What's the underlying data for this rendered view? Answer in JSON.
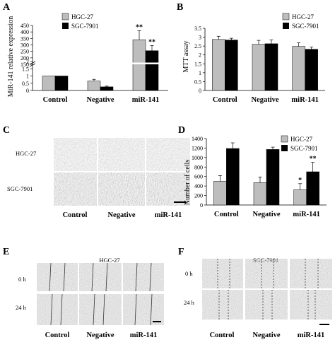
{
  "panels": {
    "A": "A",
    "B": "B",
    "C": "C",
    "D": "D",
    "E": "E",
    "F": "F"
  },
  "colors": {
    "hgc": "#bdbdbd",
    "sgc": "#000000"
  },
  "legend": {
    "hgc": "HGC-27",
    "sgc": "SGC-7901"
  },
  "categories": [
    "Control",
    "Negative",
    "miR-141"
  ],
  "chart_data": [
    {
      "panel": "A",
      "type": "bar",
      "ylabel": "MiR-141 relative expression",
      "categories": [
        "Control",
        "Negative",
        "miR-141"
      ],
      "series": [
        {
          "name": "HGC-27",
          "values": [
            1,
            0.65,
            340
          ],
          "errors": [
            0,
            0.12,
            70
          ]
        },
        {
          "name": "SGC-7901",
          "values": [
            1,
            0.25,
            255
          ],
          "errors": [
            0,
            0.05,
            40
          ]
        }
      ],
      "axis_break": true,
      "yticks_lower": [
        "0",
        "0.5",
        "1",
        "1.5",
        "2"
      ],
      "yticks_upper": [
        "150",
        "200",
        "250",
        "300",
        "350",
        "400",
        "450"
      ],
      "annotations": [
        {
          "category": "miR-141",
          "series": "HGC-27",
          "text": "**"
        },
        {
          "category": "miR-141",
          "series": "SGC-7901",
          "text": "**"
        }
      ]
    },
    {
      "panel": "B",
      "type": "bar",
      "ylabel": "MTT assay",
      "categories": [
        "Control",
        "Negative",
        "miR-141"
      ],
      "series": [
        {
          "name": "HGC-27",
          "values": [
            2.87,
            2.6,
            2.48
          ],
          "errors": [
            0.18,
            0.22,
            0.2
          ]
        },
        {
          "name": "SGC-7901",
          "values": [
            2.84,
            2.63,
            2.32
          ],
          "errors": [
            0.1,
            0.22,
            0.12
          ]
        }
      ],
      "ylim": [
        0,
        3.5
      ],
      "yticks": [
        "0",
        "0.5",
        "1",
        "1.5",
        "2",
        "2.5",
        "3",
        "3.5"
      ]
    },
    {
      "panel": "D",
      "type": "bar",
      "ylabel": "Number of cells",
      "categories": [
        "Control",
        "Negative",
        "miR-141"
      ],
      "series": [
        {
          "name": "HGC-27",
          "values": [
            500,
            470,
            320
          ],
          "errors": [
            120,
            120,
            130
          ]
        },
        {
          "name": "SGC-7901",
          "values": [
            1190,
            1170,
            700
          ],
          "errors": [
            120,
            50,
            200
          ]
        }
      ],
      "ylim": [
        0,
        1400
      ],
      "yticks": [
        "0",
        "200",
        "400",
        "600",
        "800",
        "1000",
        "1200",
        "1400"
      ],
      "annotations": [
        {
          "category": "miR-141",
          "series": "HGC-27",
          "text": "*"
        },
        {
          "category": "miR-141",
          "series": "SGC-7901",
          "text": "**"
        }
      ]
    }
  ],
  "panel_c": {
    "rows": [
      "HGC-27",
      "SGC-7901"
    ],
    "columns": [
      "Control",
      "Negative",
      "miR-141"
    ]
  },
  "panel_e": {
    "title": "HGC-27",
    "rows": [
      "0 h",
      "24 h"
    ],
    "columns": [
      "Control",
      "Negative",
      "miR-141"
    ]
  },
  "panel_f": {
    "title": "SGC-7901",
    "rows": [
      "0 h",
      "24 h"
    ],
    "columns": [
      "Control",
      "Negative",
      "miR-141"
    ]
  }
}
